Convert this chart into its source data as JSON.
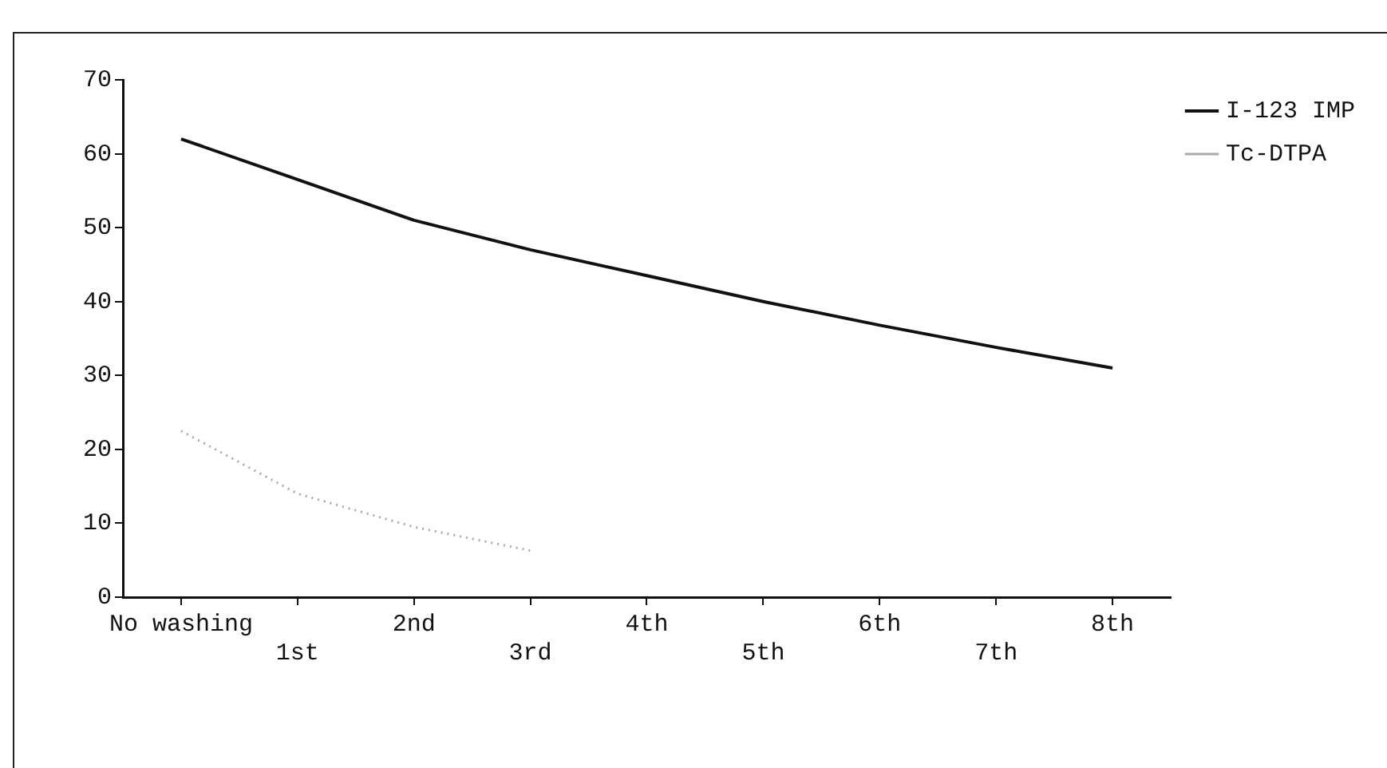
{
  "chart_data": {
    "type": "line",
    "categories": [
      "No washing",
      "1st",
      "2nd",
      "3rd",
      "4th",
      "5th",
      "6th",
      "7th",
      "8th"
    ],
    "series": [
      {
        "name": "I-123 IMP",
        "color": "#111111",
        "line_style": "solid",
        "values": [
          62,
          56.5,
          51,
          47,
          43.5,
          40,
          36.8,
          33.8,
          31
        ]
      },
      {
        "name": "Tc-DTPA",
        "color": "#aaaaaa",
        "line_style": "dotted",
        "values": [
          22.5,
          14,
          9.5,
          6.3,
          null,
          null,
          null,
          null,
          null
        ]
      }
    ],
    "ylim": [
      0,
      70
    ],
    "yticks": [
      0,
      10,
      20,
      30,
      40,
      50,
      60,
      70
    ],
    "grid": false,
    "legend": "top right",
    "marker": "none"
  }
}
